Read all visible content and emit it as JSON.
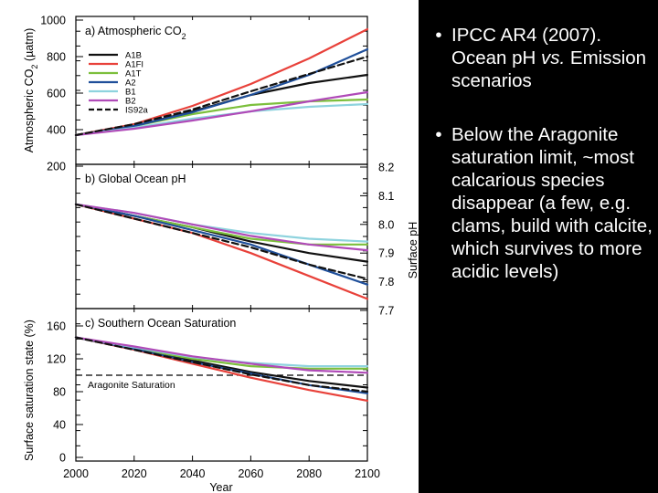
{
  "colors": {
    "A1B": "#111111",
    "A1FI": "#e8413a",
    "A1T": "#7cbf3c",
    "A2": "#1f4f9a",
    "B1": "#8ed3de",
    "B2": "#b04ab8",
    "IS92a": "#111111",
    "background": "#000000"
  },
  "bullets": [
    {
      "pre": "IPCC AR4 (2007). Ocean pH ",
      "ital": "vs.",
      "post": " Emission scenarios"
    },
    {
      "pre": "Below the Aragonite saturation limit, ~most calcarious species disappear (a few, e.g. clams, build with calcite, which survives to more acidic levels)",
      "ital": "",
      "post": ""
    }
  ],
  "chart_data": [
    {
      "type": "line",
      "title": "a) Atmospheric CO",
      "title_sub": "2",
      "ylabel": "Atmospheric CO",
      "ylabel_sub": "2",
      "ylabel_unit": "(µatm)",
      "ylim": [
        200,
        1000
      ],
      "yticks": [
        200,
        400,
        600,
        800,
        1000
      ],
      "y_axis_side": "left",
      "legend_position": "top-left",
      "x": [
        2000,
        2020,
        2040,
        2060,
        2080,
        2100
      ],
      "series": [
        {
          "name": "A1B",
          "key": "A1B",
          "values": [
            370,
            420,
            500,
            590,
            655,
            700
          ]
        },
        {
          "name": "A1FI",
          "key": "A1FI",
          "values": [
            370,
            430,
            530,
            650,
            790,
            950
          ]
        },
        {
          "name": "A1T",
          "key": "A1T",
          "values": [
            370,
            420,
            485,
            535,
            555,
            565
          ]
        },
        {
          "name": "A2",
          "key": "A2",
          "values": [
            370,
            420,
            495,
            590,
            700,
            840
          ]
        },
        {
          "name": "B1",
          "key": "B1",
          "values": [
            370,
            410,
            460,
            500,
            525,
            540
          ]
        },
        {
          "name": "B2",
          "key": "B2",
          "values": [
            370,
            405,
            450,
            500,
            555,
            605
          ]
        },
        {
          "name": "IS92a",
          "key": "IS92a",
          "dashed": true,
          "values": [
            370,
            430,
            510,
            610,
            705,
            800
          ]
        }
      ]
    },
    {
      "type": "line",
      "title": "b) Global Ocean pH",
      "ylabel": "Surface pH",
      "ylim": [
        7.7,
        8.2
      ],
      "yticks": [
        7.7,
        7.8,
        7.9,
        8.0,
        8.1,
        8.2
      ],
      "y_axis_side": "right",
      "x": [
        2000,
        2020,
        2040,
        2060,
        2080,
        2100
      ],
      "series": [
        {
          "key": "A1B",
          "values": [
            8.07,
            8.03,
            7.99,
            7.94,
            7.9,
            7.87
          ]
        },
        {
          "key": "A1FI",
          "values": [
            8.07,
            8.02,
            7.97,
            7.9,
            7.82,
            7.74
          ]
        },
        {
          "key": "A1T",
          "values": [
            8.07,
            8.03,
            7.99,
            7.95,
            7.93,
            7.93
          ]
        },
        {
          "key": "A2",
          "values": [
            8.07,
            8.03,
            7.98,
            7.93,
            7.86,
            7.79
          ]
        },
        {
          "key": "B1",
          "values": [
            8.07,
            8.04,
            8.0,
            7.97,
            7.95,
            7.94
          ]
        },
        {
          "key": "B2",
          "values": [
            8.07,
            8.04,
            8.0,
            7.96,
            7.93,
            7.91
          ]
        },
        {
          "key": "IS92a",
          "dashed": true,
          "values": [
            8.07,
            8.02,
            7.97,
            7.92,
            7.86,
            7.81
          ]
        }
      ]
    },
    {
      "type": "line",
      "title": "c) Southern Ocean Saturation",
      "ylabel": "Surface saturation state (%)",
      "xlabel": "Year",
      "xticks": [
        2000,
        2020,
        2040,
        2060,
        2080,
        2100
      ],
      "ylim": [
        0,
        170
      ],
      "yticks": [
        0,
        40,
        80,
        120,
        160
      ],
      "y_axis_side": "left",
      "annotation": "Aragonite Saturation",
      "reference_line": 100,
      "x": [
        2000,
        2020,
        2040,
        2060,
        2080,
        2100
      ],
      "series": [
        {
          "key": "A1B",
          "values": [
            146,
            133,
            118,
            104,
            93,
            85
          ]
        },
        {
          "key": "A1FI",
          "values": [
            146,
            131,
            114,
            97,
            82,
            69
          ]
        },
        {
          "key": "A1T",
          "values": [
            146,
            133,
            120,
            111,
            108,
            108
          ]
        },
        {
          "key": "A2",
          "values": [
            146,
            132,
            116,
            102,
            88,
            78
          ]
        },
        {
          "key": "B1",
          "values": [
            146,
            134,
            122,
            115,
            111,
            111
          ]
        },
        {
          "key": "B2",
          "values": [
            146,
            135,
            123,
            114,
            106,
            103
          ]
        },
        {
          "key": "IS92a",
          "dashed": true,
          "values": [
            146,
            131,
            116,
            101,
            88,
            80
          ]
        }
      ]
    }
  ]
}
